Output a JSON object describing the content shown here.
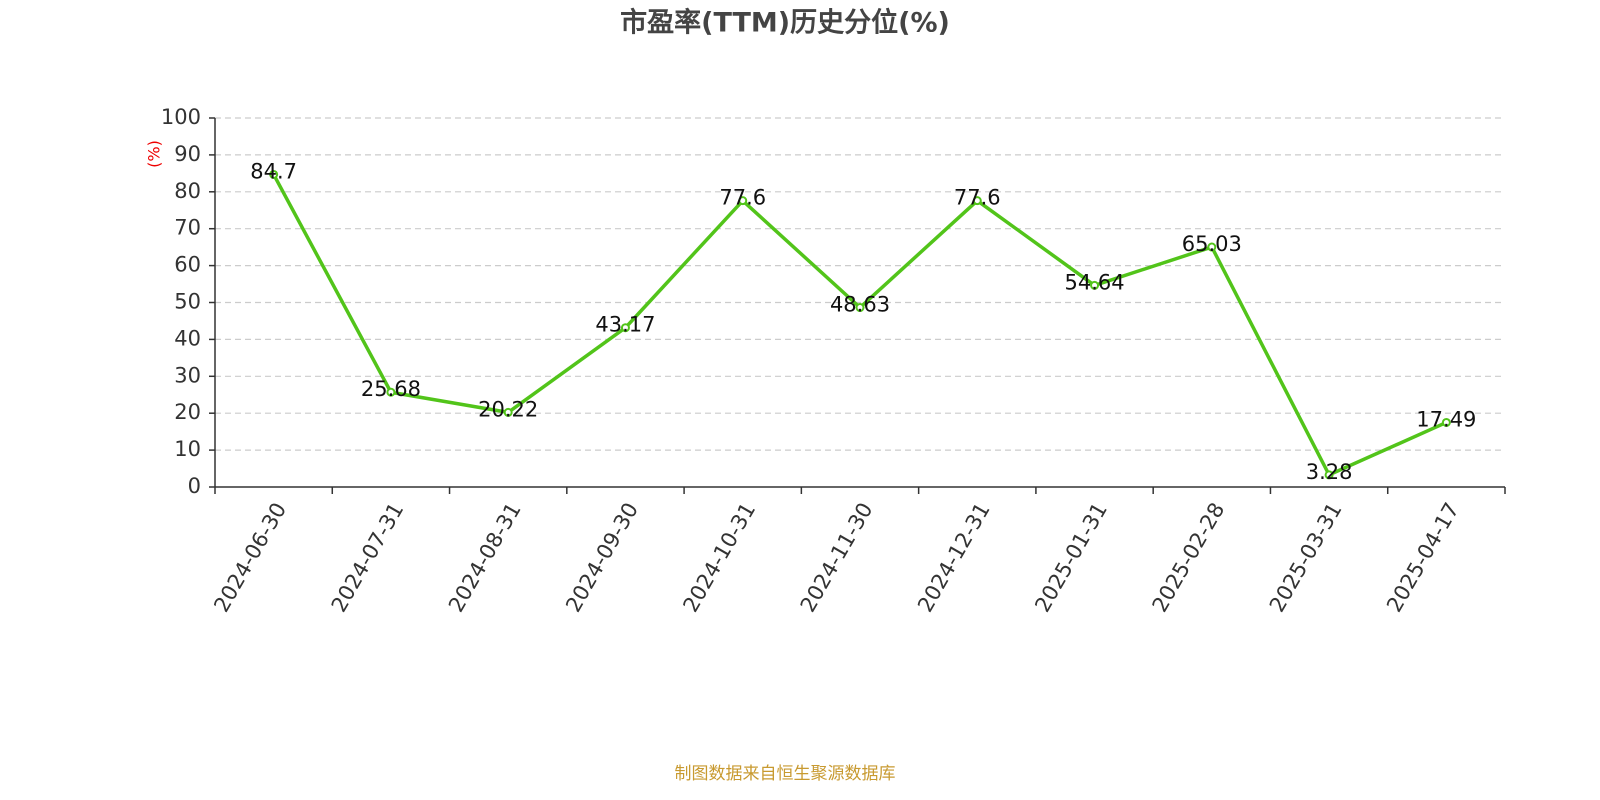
{
  "chart_data": {
    "type": "line",
    "title": "市盈率(TTM)历史分位(%)",
    "y_label": "(%)",
    "categories": [
      "2024-06-30",
      "2024-07-31",
      "2024-08-31",
      "2024-09-30",
      "2024-10-31",
      "2024-11-30",
      "2024-12-31",
      "2025-01-31",
      "2025-02-28",
      "2025-03-31",
      "2025-04-17"
    ],
    "values": [
      84.7,
      25.68,
      20.22,
      43.17,
      77.6,
      48.63,
      77.6,
      54.64,
      65.03,
      3.28,
      17.49
    ],
    "color": "#52c41a",
    "ylim": [
      0,
      100
    ],
    "yticks": [
      0,
      10,
      20,
      30,
      40,
      50,
      60,
      70,
      80,
      90,
      100
    ],
    "grid": true,
    "source": "制图数据来自恒生聚源数据库"
  }
}
